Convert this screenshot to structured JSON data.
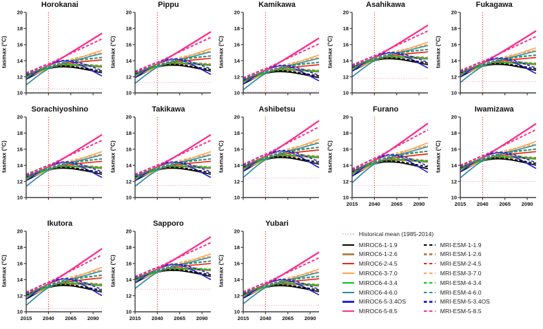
{
  "chart_data": {
    "type": "line",
    "ylabel": "tasmax (°C)",
    "ylim": [
      10,
      20
    ],
    "y_ticks": [
      10,
      12,
      14,
      16,
      18,
      20
    ],
    "xlim": [
      2015,
      2100
    ],
    "x_ticks": [
      2015,
      2040,
      2065,
      2090
    ],
    "x_years": [
      2015,
      2040,
      2065,
      2100
    ],
    "grid": false,
    "legend_position": "bottom-right",
    "reference_line_year": 2040,
    "reference_line_color": "#fb3a21",
    "historical_mean_color": "#eeaed2",
    "colors": {
      "black": "#000000",
      "brown": "#b3854e",
      "red": "#ee2417",
      "orange": "#ffa34f",
      "green": "#00c414",
      "teal": "#2f8ba0",
      "blue": "#2222dd",
      "pink": "#fc2d8a"
    },
    "series_value_rule": "value at each year = panel.base_2015 + scenario.deltas[i] * panel.spread (degrees C)",
    "scenarios": [
      {
        "name": "MIROC6-1-1.9",
        "color": "black",
        "dash": false,
        "deltas": [
          -0.3,
          1.0,
          1.2,
          0.5
        ]
      },
      {
        "name": "MIROC6-1-2.6",
        "color": "brown",
        "dash": false,
        "deltas": [
          0.0,
          1.1,
          1.4,
          1.2
        ]
      },
      {
        "name": "MIROC6-2-4.5",
        "color": "red",
        "dash": false,
        "deltas": [
          0.1,
          1.1,
          1.7,
          2.1
        ]
      },
      {
        "name": "MIROC6-3-7.0",
        "color": "orange",
        "dash": false,
        "deltas": [
          -0.1,
          1.0,
          2.0,
          3.3
        ]
      },
      {
        "name": "MIROC6-4-3.4",
        "color": "green",
        "dash": false,
        "deltas": [
          0.0,
          1.1,
          1.5,
          1.3
        ]
      },
      {
        "name": "MIROC6-4-6.0",
        "color": "teal",
        "dash": false,
        "deltas": [
          -1.0,
          1.0,
          1.9,
          2.9
        ]
      },
      {
        "name": "MIROC6-5-3.4OS",
        "color": "blue",
        "dash": false,
        "deltas": [
          -0.3,
          1.4,
          1.9,
          0.1
        ]
      },
      {
        "name": "MIROC6-5-8.5",
        "color": "pink",
        "dash": false,
        "width": 2.3,
        "deltas": [
          0.2,
          1.4,
          3.0,
          5.4
        ]
      },
      {
        "name": "MRI-ESM-1-1.9",
        "color": "black",
        "dash": true,
        "deltas": [
          0.2,
          1.2,
          1.3,
          0.7
        ]
      },
      {
        "name": "MRI-ESM-1-2.6",
        "color": "brown",
        "dash": true,
        "deltas": [
          0.3,
          1.2,
          1.6,
          1.4
        ]
      },
      {
        "name": "MRI-ESM-2-4.5",
        "color": "red",
        "dash": true,
        "deltas": [
          0.4,
          1.3,
          1.9,
          2.4
        ]
      },
      {
        "name": "MRI-ESM-3-7.0",
        "color": "orange",
        "dash": true,
        "deltas": [
          0.3,
          1.3,
          2.2,
          3.0
        ]
      },
      {
        "name": "MRI-ESM-4-3.4",
        "color": "green",
        "dash": true,
        "deltas": [
          0.3,
          1.3,
          1.9,
          2.4
        ]
      },
      {
        "name": "MRI-ESM-4-6.0",
        "color": "teal",
        "dash": true,
        "deltas": [
          0.3,
          1.2,
          2.0,
          2.4
        ]
      },
      {
        "name": "MRI-ESM-5-3.4OS",
        "color": "blue",
        "dash": true,
        "deltas": [
          0.4,
          1.6,
          2.0,
          0.8
        ]
      },
      {
        "name": "MRI-ESM-5-8.5",
        "color": "pink",
        "dash": true,
        "width": 2.0,
        "deltas": [
          0.5,
          1.6,
          2.9,
          4.7
        ]
      }
    ],
    "panels": [
      {
        "title": "Horokanai",
        "base_2015": 12.0,
        "historical_mean": 10.5,
        "spread": 1.0,
        "show_x_labels": false
      },
      {
        "title": "Pippu",
        "base_2015": 12.2,
        "historical_mean": 11.3,
        "spread": 1.0,
        "show_x_labels": false
      },
      {
        "title": "Kamikawa",
        "base_2015": 11.4,
        "historical_mean": 10.2,
        "spread": 1.0,
        "show_x_labels": false
      },
      {
        "title": "Asahikawa",
        "base_2015": 13.0,
        "historical_mean": 11.8,
        "spread": 1.0,
        "show_x_labels": false
      },
      {
        "title": "Fukagawa",
        "base_2015": 12.3,
        "historical_mean": 11.4,
        "spread": 1.0,
        "show_x_labels": false
      },
      {
        "title": "Sorachiyoshino",
        "base_2015": 12.4,
        "historical_mean": 11.5,
        "spread": 1.0,
        "show_x_labels": false
      },
      {
        "title": "Takikawa",
        "base_2015": 12.4,
        "historical_mean": 11.5,
        "spread": 1.0,
        "show_x_labels": false
      },
      {
        "title": "Ashibetsu",
        "base_2015": 13.6,
        "historical_mean": 12.4,
        "spread": 1.1,
        "show_x_labels": false
      },
      {
        "title": "Furano",
        "base_2015": 13.0,
        "historical_mean": 11.5,
        "spread": 1.15,
        "show_x_labels": true
      },
      {
        "title": "Iwamizawa",
        "base_2015": 13.5,
        "historical_mean": 12.0,
        "spread": 1.05,
        "show_x_labels": true
      },
      {
        "title": "Ikutora",
        "base_2015": 11.9,
        "historical_mean": 10.4,
        "spread": 1.1,
        "show_x_labels": true
      },
      {
        "title": "Sapporo",
        "base_2015": 13.9,
        "historical_mean": 12.8,
        "spread": 1.0,
        "show_x_labels": true
      },
      {
        "title": "Yubari",
        "base_2015": 12.0,
        "historical_mean": 10.8,
        "spread": 1.0,
        "show_x_labels": true
      }
    ]
  },
  "legend": {
    "historical_label": "Historical mean (1985-2014)",
    "historical_swatch_color": "#dcbcca"
  }
}
